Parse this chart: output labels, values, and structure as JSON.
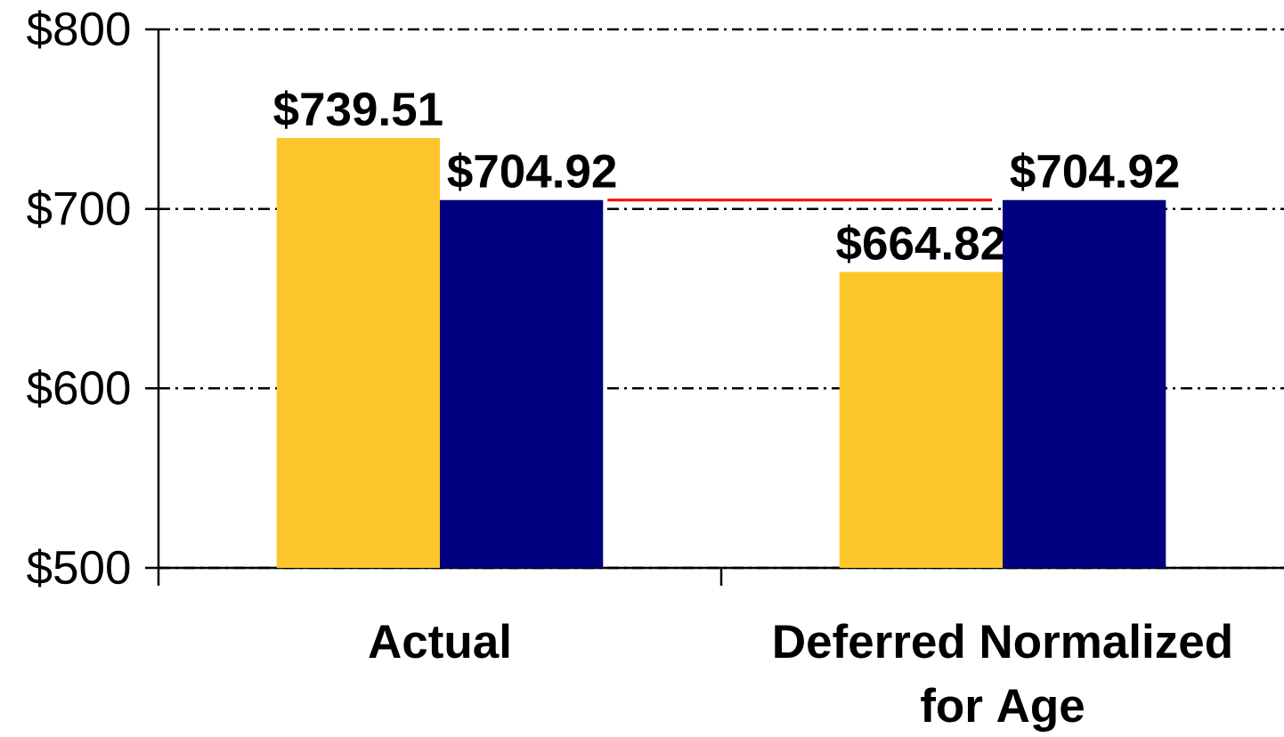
{
  "chart_data": {
    "type": "bar",
    "categories": [
      "Actual",
      "Deferred Normalized for Age"
    ],
    "series": [
      {
        "color": "#fcc62b",
        "values": [
          739.51,
          664.82
        ],
        "value_labels": [
          "$739.51",
          "$664.82"
        ]
      },
      {
        "color": "#000080",
        "values": [
          704.92,
          704.92
        ],
        "value_labels": [
          "$704.92",
          "$704.92"
        ]
      }
    ],
    "ylim": [
      500,
      800
    ],
    "yticks": [
      {
        "value": 500,
        "label": "$500"
      },
      {
        "value": 600,
        "label": "$600"
      },
      {
        "value": 700,
        "label": "$700"
      },
      {
        "value": 800,
        "label": "$800"
      }
    ],
    "grid": "y",
    "ref_lines": [
      {
        "axis": "y",
        "value": 704.92,
        "color": "#ff0000"
      }
    ]
  }
}
